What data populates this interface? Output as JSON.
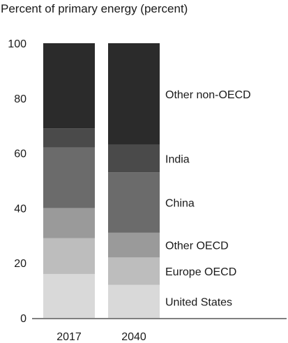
{
  "chart_data": {
    "type": "bar",
    "stacked": true,
    "title": "Percent of primary energy (percent)",
    "xlabel": "",
    "ylabel": "",
    "ylim": [
      0,
      100
    ],
    "yticks": [
      0,
      20,
      40,
      60,
      80,
      100
    ],
    "categories": [
      "2017",
      "2040"
    ],
    "series": [
      {
        "name": "United States",
        "color": "#d9d9d9",
        "values": [
          16,
          12
        ]
      },
      {
        "name": "Europe OECD",
        "color": "#bdbdbd",
        "values": [
          13,
          10
        ]
      },
      {
        "name": "Other OECD",
        "color": "#9a9a9a",
        "values": [
          11,
          9
        ]
      },
      {
        "name": "China",
        "color": "#6b6b6b",
        "values": [
          22,
          22
        ]
      },
      {
        "name": "India",
        "color": "#4a4a4a",
        "values": [
          7,
          10
        ]
      },
      {
        "name": "Other non-OECD",
        "color": "#2b2b2b",
        "values": [
          31,
          37
        ]
      }
    ],
    "labels_position": "right",
    "grid": false
  }
}
